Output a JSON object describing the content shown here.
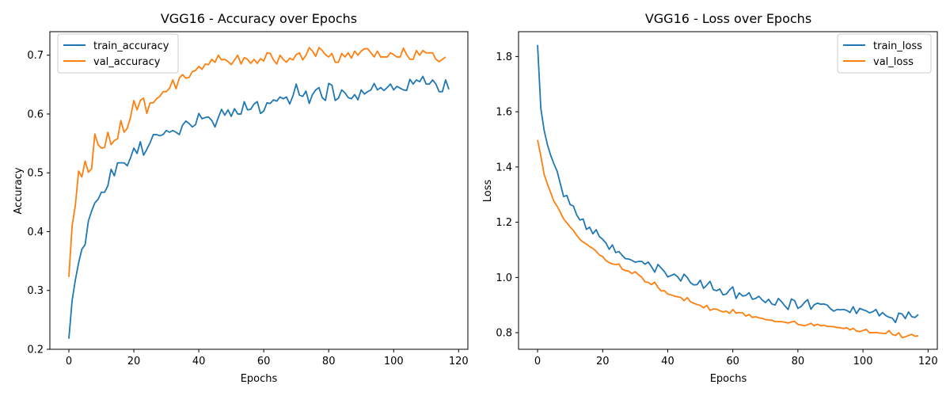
{
  "chart_data": [
    {
      "type": "line",
      "title": "VGG16 - Accuracy over Epochs",
      "xlabel": "Epochs",
      "ylabel": "Accuracy",
      "xlim": [
        -5.85,
        122.85
      ],
      "ylim": [
        0.2,
        0.74
      ],
      "xticks": [
        0,
        20,
        40,
        60,
        80,
        100,
        120
      ],
      "yticks": [
        0.2,
        0.3,
        0.4,
        0.5,
        0.6,
        0.7
      ],
      "ytick_format": 1,
      "legend": "top-left",
      "grid": false,
      "series": [
        {
          "name": "train_accuracy",
          "color": "#1f77b4",
          "values": [
            0.218,
            0.283,
            0.318,
            0.347,
            0.37,
            0.378,
            0.418,
            0.435,
            0.449,
            0.455,
            0.467,
            0.467,
            0.478,
            0.506,
            0.495,
            0.517,
            0.517,
            0.517,
            0.512,
            0.526,
            0.542,
            0.533,
            0.553,
            0.53,
            0.54,
            0.551,
            0.565,
            0.565,
            0.563,
            0.565,
            0.572,
            0.569,
            0.572,
            0.569,
            0.565,
            0.581,
            0.588,
            0.584,
            0.578,
            0.582,
            0.601,
            0.592,
            0.594,
            0.595,
            0.589,
            0.578,
            0.594,
            0.608,
            0.598,
            0.607,
            0.596,
            0.609,
            0.6,
            0.6,
            0.621,
            0.607,
            0.608,
            0.617,
            0.621,
            0.601,
            0.605,
            0.619,
            0.618,
            0.624,
            0.622,
            0.629,
            0.626,
            0.629,
            0.617,
            0.631,
            0.651,
            0.632,
            0.63,
            0.639,
            0.618,
            0.633,
            0.641,
            0.645,
            0.628,
            0.623,
            0.652,
            0.649,
            0.623,
            0.627,
            0.641,
            0.636,
            0.628,
            0.626,
            0.633,
            0.624,
            0.641,
            0.634,
            0.638,
            0.641,
            0.652,
            0.641,
            0.645,
            0.64,
            0.645,
            0.651,
            0.641,
            0.647,
            0.644,
            0.641,
            0.64,
            0.659,
            0.651,
            0.658,
            0.655,
            0.664,
            0.651,
            0.651,
            0.658,
            0.651,
            0.638,
            0.638,
            0.658,
            0.642
          ]
        },
        {
          "name": "val_accuracy",
          "color": "#ff7f0e",
          "values": [
            0.323,
            0.41,
            0.445,
            0.503,
            0.493,
            0.52,
            0.501,
            0.507,
            0.566,
            0.548,
            0.542,
            0.543,
            0.569,
            0.548,
            0.555,
            0.558,
            0.589,
            0.569,
            0.576,
            0.595,
            0.623,
            0.607,
            0.623,
            0.627,
            0.601,
            0.619,
            0.619,
            0.626,
            0.63,
            0.638,
            0.638,
            0.644,
            0.658,
            0.643,
            0.661,
            0.667,
            0.661,
            0.662,
            0.672,
            0.674,
            0.681,
            0.676,
            0.685,
            0.684,
            0.693,
            0.688,
            0.7,
            0.692,
            0.693,
            0.689,
            0.684,
            0.692,
            0.7,
            0.685,
            0.696,
            0.693,
            0.686,
            0.693,
            0.686,
            0.694,
            0.69,
            0.704,
            0.703,
            0.692,
            0.685,
            0.7,
            0.693,
            0.688,
            0.695,
            0.692,
            0.701,
            0.704,
            0.692,
            0.7,
            0.713,
            0.707,
            0.698,
            0.713,
            0.708,
            0.701,
            0.697,
            0.703,
            0.688,
            0.688,
            0.703,
            0.697,
            0.704,
            0.695,
            0.707,
            0.7,
            0.707,
            0.711,
            0.711,
            0.704,
            0.697,
            0.707,
            0.697,
            0.697,
            0.697,
            0.704,
            0.701,
            0.697,
            0.697,
            0.712,
            0.701,
            0.693,
            0.693,
            0.708,
            0.7,
            0.708,
            0.704,
            0.704,
            0.704,
            0.693,
            0.689,
            0.693,
            0.697
          ]
        }
      ]
    },
    {
      "type": "line",
      "title": "VGG16 - Loss over Epochs",
      "xlabel": "Epochs",
      "ylabel": "Loss",
      "xlim": [
        -5.85,
        122.85
      ],
      "ylim": [
        0.74,
        1.89
      ],
      "xticks": [
        0,
        20,
        40,
        60,
        80,
        100,
        120
      ],
      "yticks": [
        0.8,
        1.0,
        1.2,
        1.4,
        1.6,
        1.8
      ],
      "ytick_format": 1,
      "legend": "top-right",
      "grid": false,
      "series": [
        {
          "name": "train_loss",
          "color": "#1f77b4",
          "values": [
            1.842,
            1.612,
            1.534,
            1.482,
            1.443,
            1.412,
            1.385,
            1.339,
            1.293,
            1.297,
            1.264,
            1.259,
            1.227,
            1.208,
            1.212,
            1.174,
            1.182,
            1.158,
            1.173,
            1.148,
            1.138,
            1.125,
            1.102,
            1.118,
            1.09,
            1.094,
            1.08,
            1.068,
            1.067,
            1.062,
            1.055,
            1.058,
            1.058,
            1.048,
            1.056,
            1.039,
            1.019,
            1.047,
            1.034,
            1.021,
            1.002,
            1.007,
            1.012,
            1.003,
            0.987,
            1.012,
            1.0,
            0.981,
            0.973,
            0.974,
            0.99,
            0.961,
            0.972,
            0.986,
            0.956,
            0.952,
            0.958,
            0.937,
            0.94,
            0.955,
            0.966,
            0.924,
            0.944,
            0.933,
            0.935,
            0.945,
            0.921,
            0.924,
            0.932,
            0.919,
            0.909,
            0.921,
            0.904,
            0.9,
            0.924,
            0.912,
            0.897,
            0.884,
            0.922,
            0.916,
            0.888,
            0.895,
            0.909,
            0.92,
            0.885,
            0.901,
            0.907,
            0.903,
            0.904,
            0.9,
            0.887,
            0.878,
            0.884,
            0.883,
            0.884,
            0.881,
            0.873,
            0.894,
            0.869,
            0.888,
            0.883,
            0.879,
            0.872,
            0.876,
            0.884,
            0.861,
            0.873,
            0.862,
            0.856,
            0.853,
            0.837,
            0.871,
            0.868,
            0.851,
            0.875,
            0.858,
            0.855,
            0.866
          ]
        },
        {
          "name": "val_loss",
          "color": "#ff7f0e",
          "values": [
            1.498,
            1.44,
            1.374,
            1.339,
            1.308,
            1.276,
            1.258,
            1.236,
            1.212,
            1.198,
            1.183,
            1.17,
            1.153,
            1.138,
            1.128,
            1.121,
            1.112,
            1.105,
            1.095,
            1.081,
            1.076,
            1.061,
            1.054,
            1.049,
            1.047,
            1.049,
            1.03,
            1.025,
            1.023,
            1.014,
            1.021,
            1.01,
            1.001,
            0.984,
            0.982,
            0.974,
            0.983,
            0.964,
            0.951,
            0.952,
            0.94,
            0.937,
            0.933,
            0.93,
            0.928,
            0.916,
            0.927,
            0.912,
            0.907,
            0.902,
            0.899,
            0.89,
            0.899,
            0.881,
            0.886,
            0.885,
            0.88,
            0.875,
            0.878,
            0.87,
            0.884,
            0.871,
            0.873,
            0.872,
            0.86,
            0.866,
            0.855,
            0.858,
            0.854,
            0.852,
            0.848,
            0.846,
            0.845,
            0.84,
            0.84,
            0.84,
            0.838,
            0.835,
            0.839,
            0.841,
            0.83,
            0.828,
            0.825,
            0.829,
            0.834,
            0.825,
            0.831,
            0.825,
            0.827,
            0.823,
            0.822,
            0.822,
            0.819,
            0.818,
            0.815,
            0.818,
            0.81,
            0.816,
            0.806,
            0.804,
            0.808,
            0.812,
            0.8,
            0.8,
            0.801,
            0.799,
            0.798,
            0.797,
            0.808,
            0.794,
            0.79,
            0.8,
            0.782,
            0.785,
            0.79,
            0.794,
            0.787,
            0.789
          ]
        }
      ]
    }
  ]
}
